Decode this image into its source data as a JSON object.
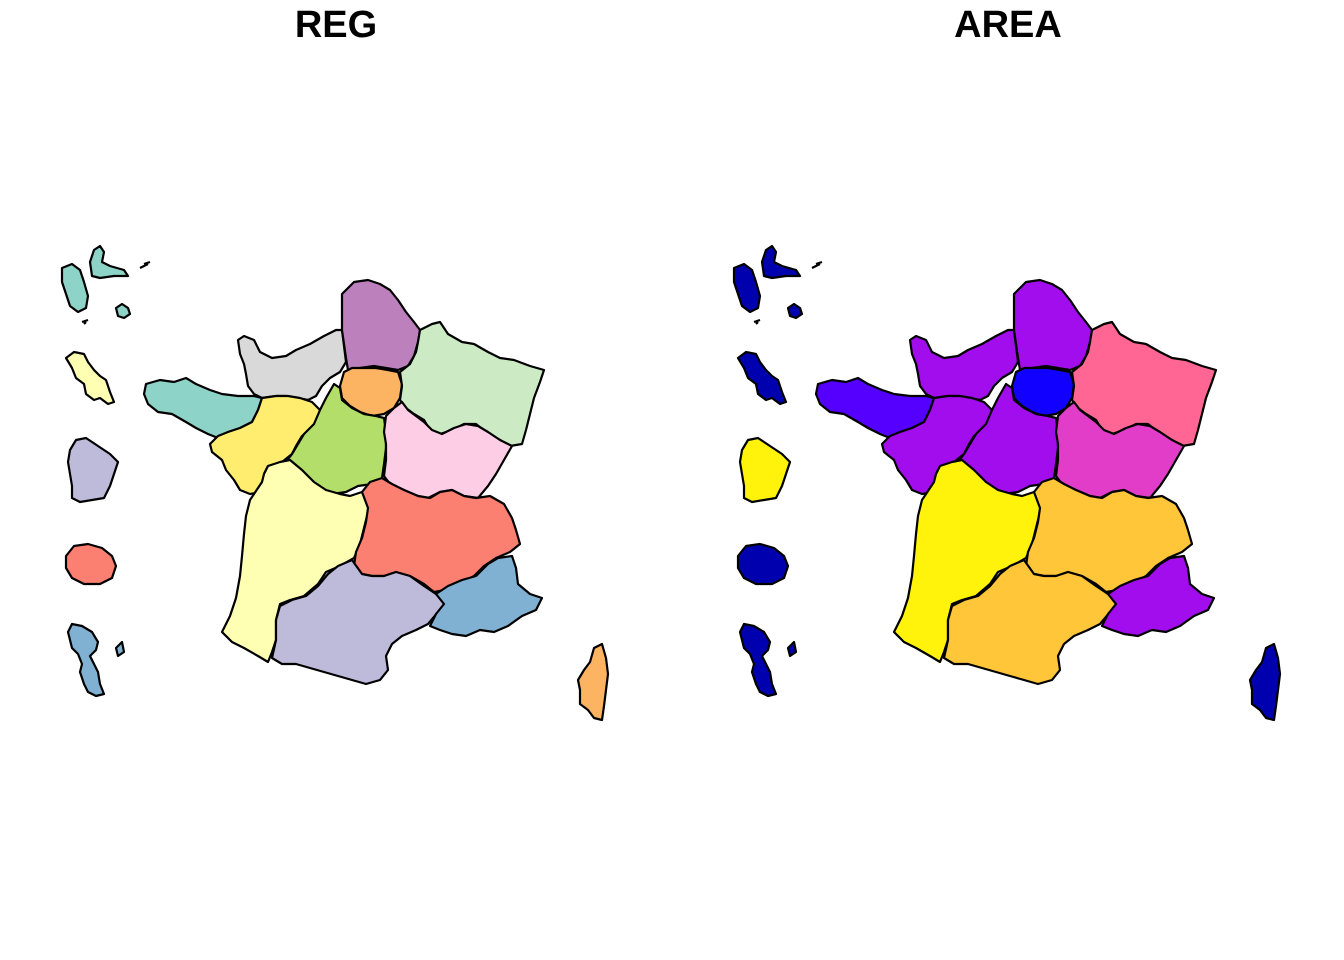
{
  "panels": [
    {
      "title": "REG"
    },
    {
      "title": "AREA"
    }
  ],
  "regions": [
    {
      "key": "guadeloupe",
      "reg": "#8dd3c7",
      "area": "#0000ae"
    },
    {
      "key": "martinique",
      "reg": "#ffffb3",
      "area": "#0000ae"
    },
    {
      "key": "guyane",
      "reg": "#bebada",
      "area": "#fff30b"
    },
    {
      "key": "reunion",
      "reg": "#fb8072",
      "area": "#0000ae"
    },
    {
      "key": "mayotte",
      "reg": "#80b1d3",
      "area": "#0000ae"
    },
    {
      "key": "normandie",
      "reg": "#d9d9d9",
      "area": "#a10ded"
    },
    {
      "key": "hauts-de-france",
      "reg": "#bc80bd",
      "area": "#a10ded"
    },
    {
      "key": "ile-de-france",
      "reg": "#fdb462",
      "area": "#1100ff"
    },
    {
      "key": "grand-est",
      "reg": "#ccebc5",
      "area": "#ff6694"
    },
    {
      "key": "bretagne",
      "reg": "#8dd3c7",
      "area": "#5500ff"
    },
    {
      "key": "pays-de-la-loire",
      "reg": "#ffed6f",
      "area": "#a10ded"
    },
    {
      "key": "centre-val-de-loire",
      "reg": "#b3de69",
      "area": "#a10ded"
    },
    {
      "key": "bourgogne-franche-comte",
      "reg": "#fccde5",
      "area": "#e23dc9"
    },
    {
      "key": "nouvelle-aquitaine",
      "reg": "#ffffb3",
      "area": "#fff30b"
    },
    {
      "key": "auvergne-rhone-alpes",
      "reg": "#fb8072",
      "area": "#ffc639"
    },
    {
      "key": "occitanie",
      "reg": "#bebada",
      "area": "#ffc639"
    },
    {
      "key": "provence-alpes-cote-azur",
      "reg": "#80b1d3",
      "area": "#a10ded"
    },
    {
      "key": "corse",
      "reg": "#fdb462",
      "area": "#0000ae"
    }
  ]
}
